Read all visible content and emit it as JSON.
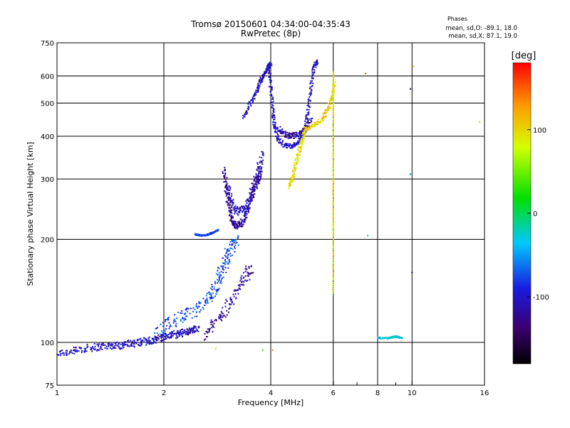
{
  "chart_data": {
    "type": "scatter",
    "title": "Tromsø 20150601 04:34:00-04:35:43",
    "subtitle": "RwPretec (8p)",
    "xlabel": "Frequency [MHz]",
    "ylabel": "Stationary phase Virtual Height [km]",
    "x_scale": "log",
    "y_scale": "log",
    "xlim": [
      1,
      16
    ],
    "ylim": [
      75,
      750
    ],
    "x_ticks": [
      1,
      2,
      4,
      6,
      8,
      10,
      16
    ],
    "x_tick_labels": [
      "1",
      "2",
      "4",
      "6",
      "8",
      "10",
      "16"
    ],
    "x_minor_ticks": [
      7,
      9
    ],
    "y_ticks": [
      75,
      100,
      200,
      300,
      400,
      500,
      600,
      750
    ],
    "y_tick_labels": [
      "75",
      "100",
      "200",
      "300",
      "400",
      "500",
      "600",
      "750"
    ],
    "grid": true,
    "grid_x": [
      2,
      4,
      6,
      8,
      10
    ],
    "grid_y": [
      100,
      200,
      300,
      400,
      500,
      600
    ],
    "stats": {
      "heading": "Phases",
      "line_o": "mean, sd,O: -89.1, 18.0",
      "line_x": "mean, sd,X:  87.1, 19.0"
    },
    "colorbar": {
      "label": "[deg]",
      "range": [
        -180,
        180
      ],
      "ticks": [
        100,
        0,
        -100
      ],
      "tick_labels": [
        "100",
        "0",
        "-100"
      ]
    },
    "traces": [
      {
        "x": [
          1.0,
          1.1,
          1.2,
          1.3,
          1.4,
          1.5,
          1.6,
          1.7,
          1.8,
          1.9,
          2.0,
          2.1,
          2.2,
          2.3,
          2.4,
          2.5
        ],
        "y": [
          93,
          94,
          96,
          97,
          98,
          98,
          99,
          100,
          101,
          102,
          104,
          105,
          106,
          107,
          108,
          110
        ],
        "phase": -105,
        "spread": 0.05
      },
      {
        "x": [
          1.9,
          2.1,
          2.3,
          2.5,
          2.7,
          2.8,
          2.9,
          3.0,
          3.1,
          3.2
        ],
        "y": [
          108,
          115,
          120,
          125,
          135,
          145,
          160,
          175,
          190,
          200
        ],
        "phase": -75,
        "spread": 0.08
      },
      {
        "x": [
          2.6,
          2.8,
          3.0,
          3.2,
          3.4,
          3.5
        ],
        "y": [
          105,
          115,
          125,
          140,
          155,
          165
        ],
        "phase": -120,
        "spread": 0.07
      },
      {
        "x": [
          2.45,
          2.55,
          2.65,
          2.75,
          2.85
        ],
        "y": [
          207,
          205,
          206,
          209,
          213
        ],
        "phase": -80,
        "spread": 0.01
      },
      {
        "x": [
          2.95,
          3.0,
          3.05,
          3.1,
          3.15,
          3.2,
          3.3,
          3.4,
          3.5,
          3.6,
          3.7,
          3.75
        ],
        "y": [
          320,
          280,
          250,
          230,
          222,
          218,
          222,
          235,
          255,
          280,
          300,
          320
        ],
        "phase": -120,
        "spread": 0.04
      },
      {
        "x": [
          3.0,
          3.1,
          3.2,
          3.35,
          3.5,
          3.6,
          3.7,
          3.8
        ],
        "y": [
          290,
          260,
          240,
          245,
          265,
          290,
          320,
          360
        ],
        "phase": -110,
        "spread": 0.05
      },
      {
        "x": [
          3.35,
          3.5,
          3.65,
          3.75,
          3.85,
          3.95,
          4.0
        ],
        "y": [
          450,
          500,
          540,
          580,
          610,
          640,
          650
        ],
        "phase": -105,
        "spread": 0.03
      },
      {
        "x": [
          3.95,
          4.0,
          4.05,
          4.1,
          4.2,
          4.4,
          4.6,
          4.8,
          5.0,
          5.1,
          5.2,
          5.3,
          5.4
        ],
        "y": [
          640,
          560,
          480,
          430,
          390,
          375,
          375,
          385,
          420,
          480,
          560,
          640,
          660
        ],
        "phase": -105,
        "spread": 0.03
      },
      {
        "x": [
          4.2,
          4.4,
          4.6,
          4.8,
          5.0,
          5.2
        ],
        "y": [
          420,
          405,
          400,
          405,
          420,
          450
        ],
        "phase": -115,
        "spread": 0.04
      },
      {
        "x": [
          4.5,
          4.6,
          4.7,
          4.8,
          4.9,
          5.0
        ],
        "y": [
          285,
          300,
          330,
          360,
          390,
          420
        ],
        "phase": 95,
        "spread": 0.03
      },
      {
        "x": [
          5.0,
          5.3,
          5.6,
          5.8,
          5.95,
          6.05
        ],
        "y": [
          420,
          430,
          450,
          480,
          520,
          580
        ],
        "phase": 105,
        "spread": 0.03
      },
      {
        "x": [
          6.0,
          6.0,
          6.0,
          6.0,
          6.0,
          6.0
        ],
        "y": [
          140,
          200,
          260,
          350,
          480,
          620
        ],
        "phase": 90,
        "spread": 0.006
      },
      {
        "x": [
          8.0,
          8.6,
          9.0,
          9.4
        ],
        "y": [
          103,
          103,
          104,
          103
        ],
        "phase": -30,
        "spread": 0.01
      }
    ],
    "sparse_points": [
      {
        "x": 9.9,
        "y": 550,
        "phase": -150
      },
      {
        "x": 10.0,
        "y": 160,
        "phase": -120
      },
      {
        "x": 10.1,
        "y": 640,
        "phase": 110
      },
      {
        "x": 7.4,
        "y": 610,
        "phase": 150
      },
      {
        "x": 9.9,
        "y": 310,
        "phase": -60
      },
      {
        "x": 7.5,
        "y": 205,
        "phase": 0
      },
      {
        "x": 15.5,
        "y": 440,
        "phase": 110
      },
      {
        "x": 3.8,
        "y": 95,
        "phase": 30
      },
      {
        "x": 4.05,
        "y": 95,
        "phase": 140
      },
      {
        "x": 2.8,
        "y": 96,
        "phase": 60
      }
    ]
  }
}
